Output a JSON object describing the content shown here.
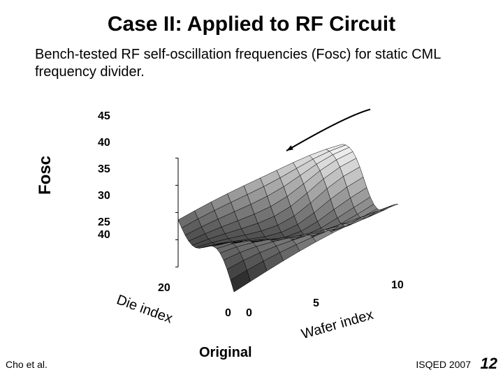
{
  "title": "Case II: Applied to RF Circuit",
  "subtitle": "Bench-tested RF self-oscillation frequencies (Fosc) for static CML frequency divider.",
  "chart": {
    "type": "surface3d",
    "z_label": "Fosc",
    "x_label": "Die index",
    "y_label": "Wafer index",
    "z_ticks": [
      "45",
      "40",
      "35",
      "30",
      "25"
    ],
    "x_ticks": [
      "40",
      "20",
      "0"
    ],
    "y_ticks": [
      "0",
      "5",
      "10"
    ],
    "z_lim": [
      25,
      45
    ],
    "x_lim": [
      0,
      40
    ],
    "y_lim": [
      0,
      10
    ],
    "grid_n_x": 16,
    "grid_n_y": 10,
    "surface_low_color": "#1a1a1a",
    "surface_high_color": "#f5f5f5",
    "mesh_line_color": "#000000",
    "mesh_line_width": 0.5,
    "background_color": "#ffffff",
    "arrow": {
      "from": [
        0.86,
        0.02
      ],
      "to": [
        0.62,
        0.2
      ],
      "color": "#000000",
      "width": 2
    }
  },
  "caption": "Original",
  "footer": {
    "left": "Cho et al.",
    "right": "ISQED 2007",
    "page": "12"
  },
  "title_fontsize": 30,
  "subtitle_fontsize": 20,
  "axis_label_fontsize_z": 24,
  "axis_label_fontsize_xy": 20,
  "tick_fontsize": 16
}
